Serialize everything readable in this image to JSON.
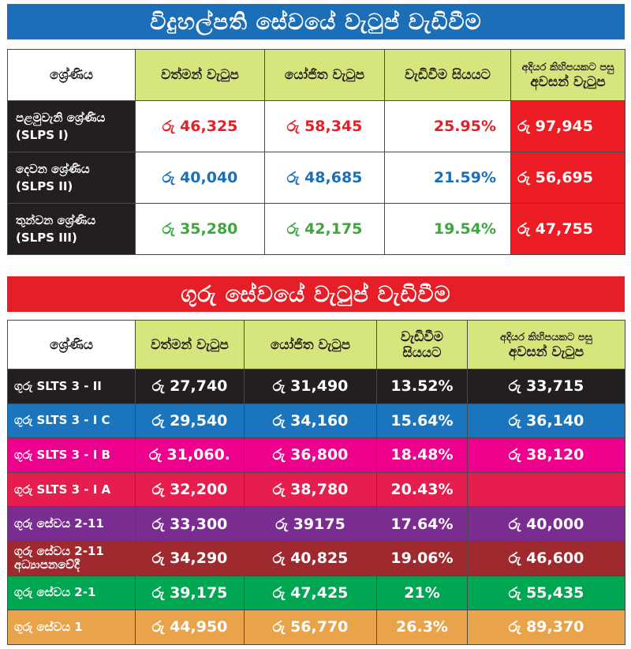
{
  "banner1": "විදුහල්පති සේවයේ වැටුප් වැඩිවීම",
  "banner2": "ගුරු සේවයේ වැටුප් වැඩිවීම",
  "table1": {
    "headers": [
      "ශ්‍රේණිය",
      "වත්මන් වැටුප",
      "යෝජිත වැටුප",
      "වැඩිවීම සියයට",
      "අදියර කිහිපයකට පසු",
      "අවසන් වැටුප"
    ],
    "rows": [
      {
        "label1": "පළමුවැනි ශ්‍රේණිය",
        "label2": "(SLPS I)",
        "current": "රු 46,325",
        "proposed": "රු 58,345",
        "percent": "25.95%",
        "final": "රු 97,945",
        "color": "#e61e27"
      },
      {
        "label1": "දෙවන ශ්‍රේණිය",
        "label2": "(SLPS II)",
        "current": "රු 40,040",
        "proposed": "රු 48,685",
        "percent": "21.59%",
        "final": "රු 56,695",
        "color": "#1b6fb8"
      },
      {
        "label1": "තුන්වන ශ්‍රේණිය",
        "label2": "(SLPS III)",
        "current": "රු 35,280",
        "proposed": "රු 42,175",
        "percent": "19.54%",
        "final": "රු 47,755",
        "color": "#3aa83c"
      }
    ]
  },
  "table2": {
    "headers": [
      "ශ්‍රේණිය",
      "වත්මන් වැටුප",
      "යෝජිත වැටුප",
      "වැඩිවීම",
      "සියයට",
      "අදියර කිහිපයකට පසු",
      "අවසන් වැටුප"
    ],
    "rows": [
      {
        "label1": "ගුරු SLTS 3 - II",
        "label2": "",
        "current": "රු 27,740",
        "proposed": "රු 31,490",
        "percent": "13.52%",
        "final": "රු 33,715",
        "bg": "#231f20"
      },
      {
        "label1": "ගුරු SLTS 3 - I C",
        "label2": "",
        "current": "රු 29,540",
        "proposed": "රු 34,160",
        "percent": "15.64%",
        "final": "රු 36,140",
        "bg": "#1b75bc"
      },
      {
        "label1": "ගුරු SLTS 3 - I B",
        "label2": "",
        "current": "රු 31,060.",
        "proposed": "රු 36,800",
        "percent": "18.48%",
        "final": "රු 38,120",
        "bg": "#ec008c"
      },
      {
        "label1": "ගුරු SLTS 3 - I A",
        "label2": "",
        "current": "රු 32,200",
        "proposed": "රු 38,780",
        "percent": "20.43%",
        "final": "",
        "bg": "#e61e4d"
      },
      {
        "label1": "ගුරු සේවය 2-11",
        "label2": "",
        "current": "රු 33,300",
        "proposed": "රු 39175",
        "percent": "17.64%",
        "final": "රු 40,000",
        "bg": "#7b2c91"
      },
      {
        "label1": "ගුරු සේවය 2-11",
        "label2": "අධ්‍යාපනවේදී",
        "current": "රු 34,290",
        "proposed": "රු 40,825",
        "percent": "19.06%",
        "final": "රු 46,600",
        "bg": "#9e2a2f"
      },
      {
        "label1": "ගුරු සේවය 2-1",
        "label2": "",
        "current": "රු 39,175",
        "proposed": "රු 47,425",
        "percent": "21%",
        "final": "රු 55,435",
        "bg": "#00a651"
      },
      {
        "label1": "ගුරු සේවය 1",
        "label2": "",
        "current": "රු 44,950",
        "proposed": "රු 56,770",
        "percent": "26.3%",
        "final": "රු 89,370",
        "bg": "#e8a34b"
      }
    ]
  }
}
